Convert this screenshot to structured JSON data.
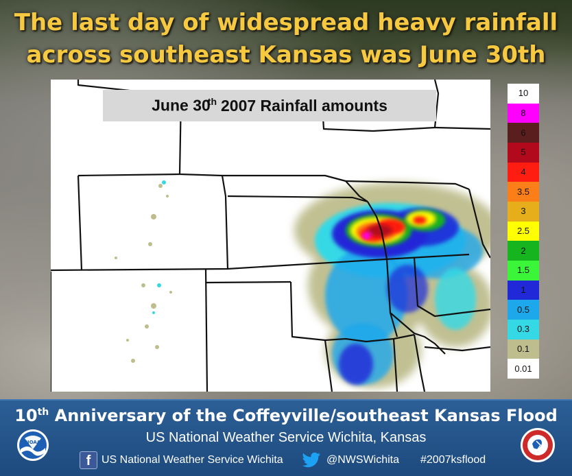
{
  "headline": {
    "line1": "The last day of widespread heavy rainfall",
    "line2": "across southeast Kansas was June 30th"
  },
  "map": {
    "title_pre": "June 30",
    "title_sup": "th",
    "title_post": "2007 Rainfall amounts"
  },
  "legend": {
    "levels": [
      {
        "label": "10",
        "color": "#ffffff"
      },
      {
        "label": "8",
        "color": "#ff00ff"
      },
      {
        "label": "6",
        "color": "#5a1e1e"
      },
      {
        "label": "5",
        "color": "#b2091c"
      },
      {
        "label": "4",
        "color": "#ff1c10"
      },
      {
        "label": "3.5",
        "color": "#fc7e18"
      },
      {
        "label": "3",
        "color": "#e5ae1a"
      },
      {
        "label": "2.5",
        "color": "#ffff00"
      },
      {
        "label": "2",
        "color": "#16b41f"
      },
      {
        "label": "1.5",
        "color": "#3af538"
      },
      {
        "label": "1",
        "color": "#2028d8"
      },
      {
        "label": "0.5",
        "color": "#1ea8ec"
      },
      {
        "label": "0.3",
        "color": "#35d9e6"
      },
      {
        "label": "0.1",
        "color": "#bdbd8e"
      },
      {
        "label": "0.01",
        "color": "#ffffff"
      }
    ]
  },
  "footer": {
    "anniv_pre": "10",
    "anniv_sup": "th",
    "anniv_post": " Anniversary of the Coffeyville/southeast Kansas Flood",
    "office": "US National Weather Service Wichita, Kansas",
    "facebook": "US National Weather Service Wichita",
    "twitter": "@NWSWichita",
    "hashtag": "#2007ksflood",
    "noaa_logo_text": "NOAA"
  },
  "colors": {
    "headline": "#f7c941",
    "footer_bg": "#1d4a7e"
  },
  "icons": [
    "facebook-icon",
    "twitter-icon",
    "noaa-logo",
    "nws-logo"
  ]
}
